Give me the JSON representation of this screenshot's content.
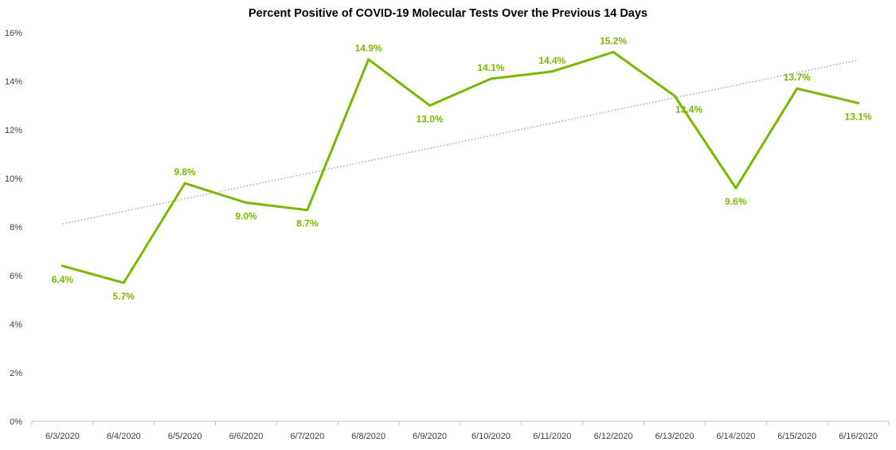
{
  "chart_data": {
    "type": "line",
    "title": "Percent Positive of COVID-19 Molecular Tests Over the Previous 14 Days",
    "xlabel": "",
    "ylabel": "",
    "categories": [
      "6/3/2020",
      "6/4/2020",
      "6/5/2020",
      "6/6/2020",
      "6/7/2020",
      "6/8/2020",
      "6/9/2020",
      "6/10/2020",
      "6/11/2020",
      "6/12/2020",
      "6/13/2020",
      "6/14/2020",
      "6/15/2020",
      "6/16/2020"
    ],
    "series": [
      {
        "values": [
          6.4,
          5.7,
          9.8,
          9.0,
          8.7,
          14.9,
          13.0,
          14.1,
          14.4,
          15.2,
          13.4,
          9.6,
          13.7,
          13.1
        ],
        "data_labels": [
          "6.4%",
          "5.7%",
          "9.8%",
          "9.0%",
          "8.7%",
          "14.9%",
          "13.0%",
          "14.1%",
          "14.4%",
          "15.2%",
          "13.4%",
          "9.6%",
          "13.7%",
          "13.1%"
        ],
        "color": "#7ab800"
      }
    ],
    "trendline": {
      "type": "linear",
      "style": "dotted",
      "color": "#a6a6a6"
    },
    "ylim": [
      0,
      16
    ],
    "yticks": [
      0,
      2,
      4,
      6,
      8,
      10,
      12,
      14,
      16
    ],
    "ytick_labels": [
      "0%",
      "2%",
      "4%",
      "6%",
      "8%",
      "10%",
      "12%",
      "14%",
      "16%"
    ],
    "grid": false,
    "legend": "none"
  }
}
